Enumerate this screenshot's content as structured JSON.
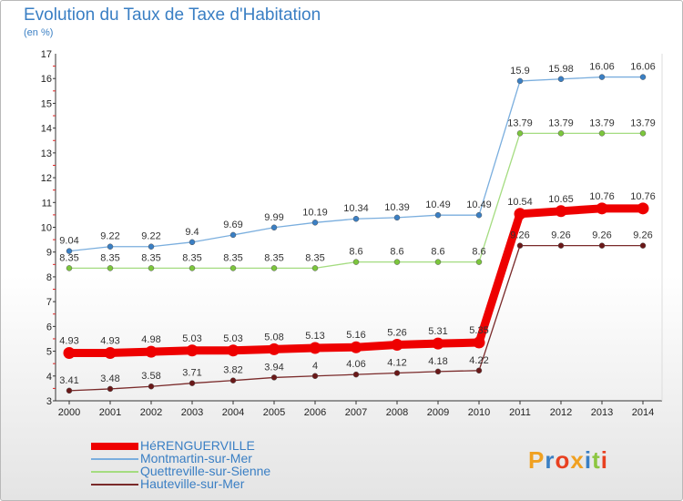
{
  "title": "Evolution du Taux de Taxe d'Habitation",
  "subtitle": "(en %)",
  "logo": {
    "text": "Proxiti",
    "letter_colors": [
      "#f0a020",
      "#3a7fc4",
      "#e84020",
      "#f0a020",
      "#3a7fc4",
      "#8cc640",
      "#e84020"
    ]
  },
  "chart_data": {
    "type": "line",
    "title": "Evolution du Taux de Taxe d'Habitation",
    "ylabel": "(en %)",
    "xlabel": "",
    "x": [
      "2000",
      "2001",
      "2002",
      "2003",
      "2004",
      "2005",
      "2006",
      "2007",
      "2008",
      "2009",
      "2010",
      "2011",
      "2012",
      "2013",
      "2014"
    ],
    "ylim": [
      3,
      17
    ],
    "yticks": [
      3,
      4,
      5,
      6,
      7,
      8,
      9,
      10,
      11,
      12,
      13,
      14,
      15,
      16,
      17
    ],
    "grid": false,
    "legend_position": "bottom-left",
    "series": [
      {
        "name": "HéRENGUERVILLE",
        "color": "#ee0000",
        "marker_color": "#ee0000",
        "emphasis": "thick",
        "values": [
          4.93,
          4.93,
          4.98,
          5.03,
          5.03,
          5.08,
          5.13,
          5.16,
          5.26,
          5.31,
          5.35,
          10.54,
          10.65,
          10.76,
          10.76
        ],
        "labels": [
          "4.93",
          "4.93",
          "4.98",
          "5.03",
          "5.03",
          "5.08",
          "5.13",
          "5.16",
          "5.26",
          "5.31",
          "5.35",
          "10.54",
          "10.65",
          "10.76",
          "10.76"
        ]
      },
      {
        "name": "Montmartin-sur-Mer",
        "color": "#7aaede",
        "marker_color": "#3a7fc4",
        "emphasis": "normal",
        "values": [
          9.04,
          9.22,
          9.22,
          9.4,
          9.69,
          9.99,
          10.19,
          10.34,
          10.39,
          10.49,
          10.49,
          15.9,
          15.98,
          16.06,
          16.06
        ],
        "labels": [
          "9.04",
          "9.22",
          "9.22",
          "9.4",
          "9.69",
          "9.99",
          "10.19",
          "10.34",
          "10.39",
          "10.49",
          "10.49",
          "15.9",
          "15.98",
          "16.06",
          "16.06"
        ]
      },
      {
        "name": "Quettreville-sur-Sienne",
        "color": "#a4dc80",
        "marker_color": "#7cc63c",
        "emphasis": "normal",
        "values": [
          8.35,
          8.35,
          8.35,
          8.35,
          8.35,
          8.35,
          8.35,
          8.6,
          8.6,
          8.6,
          8.6,
          13.79,
          13.79,
          13.79,
          13.79
        ],
        "labels": [
          "8.35",
          "8.35",
          "8.35",
          "8.35",
          "8.35",
          "8.35",
          "8.35",
          "8.6",
          "8.6",
          "8.6",
          "8.6",
          "13.79",
          "13.79",
          "13.79",
          "13.79"
        ]
      },
      {
        "name": "Hauteville-sur-Mer",
        "color": "#7a2a2a",
        "marker_color": "#6a1818",
        "emphasis": "normal",
        "values": [
          3.41,
          3.48,
          3.58,
          3.71,
          3.82,
          3.94,
          4,
          4.06,
          4.12,
          4.18,
          4.22,
          9.26,
          9.26,
          9.26,
          9.26
        ],
        "labels": [
          "3.41",
          "3.48",
          "3.58",
          "3.71",
          "3.82",
          "3.94",
          "4",
          "4.06",
          "4.12",
          "4.18",
          "4.22",
          "9.26",
          "9.26",
          "9.26",
          "9.26"
        ]
      }
    ]
  }
}
